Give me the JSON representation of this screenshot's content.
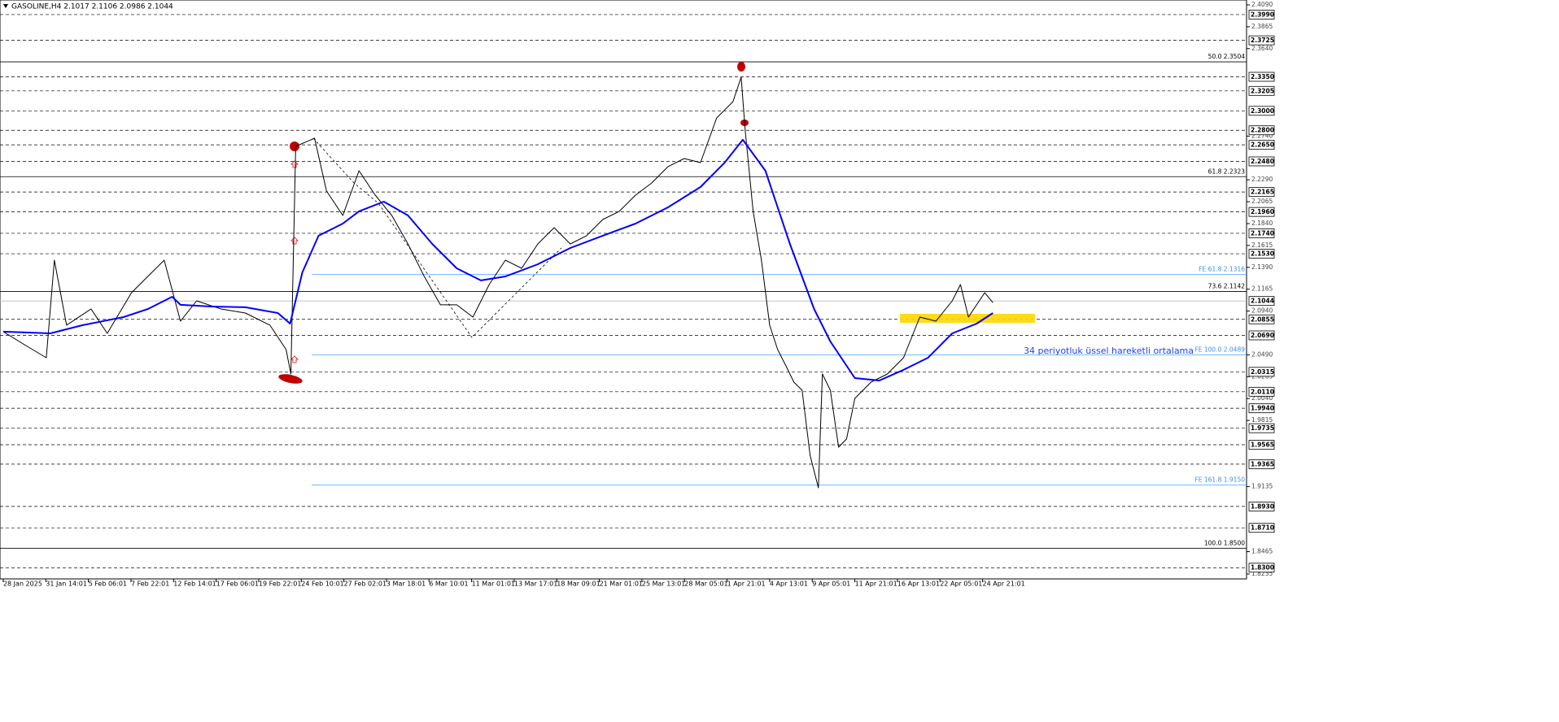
{
  "chart_data": {
    "type": "line",
    "title": "GASOLINE,H4  2.1017 2.1106 2.0986 2.1044",
    "annotation": "34 periyotluk üssel hareketli ortalama",
    "xlim": [
      -0.6,
      467.2
    ],
    "ylim": [
      1.8235,
      2.409
    ],
    "xticks": [
      {
        "value": 0,
        "label": "28 Jan 2025"
      },
      {
        "value": 16,
        "label": "31 Jan 14:01"
      },
      {
        "value": 32,
        "label": "5 Feb 06:01"
      },
      {
        "value": 48,
        "label": "7 Feb 22:01"
      },
      {
        "value": 64,
        "label": "12 Feb 14:01"
      },
      {
        "value": 80,
        "label": "17 Feb 06:01"
      },
      {
        "value": 96,
        "label": "19 Feb 22:01"
      },
      {
        "value": 112,
        "label": "24 Feb 10:01"
      },
      {
        "value": 128,
        "label": "27 Feb 02:01"
      },
      {
        "value": 144,
        "label": "3 Mar 18:01"
      },
      {
        "value": 160,
        "label": "6 Mar 10:01"
      },
      {
        "value": 176,
        "label": "11 Mar 01:01"
      },
      {
        "value": 192,
        "label": "13 Mar 17:01"
      },
      {
        "value": 208,
        "label": "18 Mar 09:01"
      },
      {
        "value": 224,
        "label": "21 Mar 01:01"
      },
      {
        "value": 240,
        "label": "25 Mar 13:01"
      },
      {
        "value": 256,
        "label": "28 Mar 05:01"
      },
      {
        "value": 272,
        "label": "1 Apr 21:01"
      },
      {
        "value": 288,
        "label": "4 Apr 13:01"
      },
      {
        "value": 304,
        "label": "9 Apr 05:01"
      },
      {
        "value": 320,
        "label": "11 Apr 21:01"
      },
      {
        "value": 336,
        "label": "16 Apr 13:01"
      },
      {
        "value": 352,
        "label": "22 Apr 05:01"
      },
      {
        "value": 368,
        "label": "24 Apr 21:01"
      }
    ],
    "yticks": [
      {
        "value": 2.409,
        "label": "2.4090"
      },
      {
        "value": 2.3865,
        "label": "2.3865"
      },
      {
        "value": 2.364,
        "label": "2.3640"
      },
      {
        "value": 2.274,
        "label": "2.2740"
      },
      {
        "value": 2.229,
        "label": "2.2290"
      },
      {
        "value": 2.2065,
        "label": "2.2065"
      },
      {
        "value": 2.184,
        "label": "2.1840"
      },
      {
        "value": 2.1615,
        "label": "2.1615"
      },
      {
        "value": 2.139,
        "label": "2.1390"
      },
      {
        "value": 2.1165,
        "label": "2.1165"
      },
      {
        "value": 2.094,
        "label": "2.0940"
      },
      {
        "value": 2.049,
        "label": "2.0490"
      },
      {
        "value": 2.0265,
        "label": "2.0265"
      },
      {
        "value": 2.004,
        "label": "2.0040"
      },
      {
        "value": 1.9815,
        "label": "1.9815"
      },
      {
        "value": 1.9135,
        "label": "1.9135"
      },
      {
        "value": 1.8465,
        "label": "1.8465"
      },
      {
        "value": 1.8235,
        "label": "1.8235"
      }
    ],
    "levels": [
      {
        "value": 2.399,
        "label": "2.3990"
      },
      {
        "value": 2.3725,
        "label": "2.3725"
      },
      {
        "value": 2.335,
        "label": "2.3350"
      },
      {
        "value": 2.3205,
        "label": "2.3205"
      },
      {
        "value": 2.3,
        "label": "2.3000"
      },
      {
        "value": 2.28,
        "label": "2.2800"
      },
      {
        "value": 2.265,
        "label": "2.2650"
      },
      {
        "value": 2.248,
        "label": "2.2480"
      },
      {
        "value": 2.2165,
        "label": "2.2165"
      },
      {
        "value": 2.196,
        "label": "2.1960"
      },
      {
        "value": 2.174,
        "label": "2.1740"
      },
      {
        "value": 2.153,
        "label": "2.1530"
      },
      {
        "value": 2.0855,
        "label": "2.0855"
      },
      {
        "value": 2.069,
        "label": "2.0690"
      },
      {
        "value": 2.0315,
        "label": "2.0315"
      },
      {
        "value": 2.011,
        "label": "2.0110"
      },
      {
        "value": 1.994,
        "label": "1.9940"
      },
      {
        "value": 1.9735,
        "label": "1.9735"
      },
      {
        "value": 1.9565,
        "label": "1.9565"
      },
      {
        "value": 1.9365,
        "label": "1.9365"
      },
      {
        "value": 1.893,
        "label": "1.8930"
      },
      {
        "value": 1.871,
        "label": "1.8710"
      },
      {
        "value": 1.83,
        "label": "1.8300"
      }
    ],
    "current_price": {
      "value": 2.1044,
      "label": "2.1044"
    },
    "fib_levels": [
      {
        "value": 2.3504,
        "label": "50.0 2.3504"
      },
      {
        "value": 2.2323,
        "label": "61.8 2.2323"
      },
      {
        "value": 2.1142,
        "label": "73.6 2.1142"
      },
      {
        "value": 1.85,
        "label": "100.0 1.8500"
      }
    ],
    "fe_levels": [
      {
        "value": 2.1316,
        "label": "FE 61.8 2.1316"
      },
      {
        "value": 2.0489,
        "label": "FE 100.0 2.0489"
      },
      {
        "value": 1.915,
        "label": "FE 161.8 1.9150"
      }
    ],
    "series": [
      {
        "color": "#000000",
        "x": [
          0,
          8.5,
          16.2,
          19.2,
          23.8,
          33,
          39.1,
          48.2,
          60.5,
          66.6,
          72.7,
          81.8,
          91,
          100.2,
          106.3,
          108.1,
          109.9,
          117,
          121.5,
          127.6,
          133.7,
          139.8,
          146,
          152.1,
          158.2,
          164.3,
          170.4,
          176.5,
          182.6,
          188.7,
          194.8,
          200.9,
          207,
          213.1,
          219.2,
          225.3,
          231.5,
          237.6,
          243.7,
          249.8,
          255.9,
          262,
          268.1,
          274.2,
          277.3,
          278.8,
          281.8,
          284.9,
          288,
          291,
          294.1,
          297.1,
          300.2,
          303.2,
          306.3,
          307.8,
          310.8,
          313.9,
          316.9,
          320,
          326.1,
          332.2,
          338.3,
          344.4,
          350.5,
          356.6,
          359.7,
          362.7,
          368.8,
          371.9
        ],
        "values": [
          2.0728,
          2.0585,
          2.046,
          2.1464,
          2.0795,
          2.0962,
          2.0711,
          2.1129,
          2.1464,
          2.0836,
          2.1045,
          2.0962,
          2.092,
          2.0795,
          2.0544,
          2.0293,
          2.2635,
          2.2718,
          2.2175,
          2.1924,
          2.2384,
          2.2133,
          2.1924,
          2.1631,
          2.1296,
          2.1004,
          2.1004,
          2.0878,
          2.1213,
          2.1464,
          2.138,
          2.1631,
          2.1798,
          2.1631,
          2.1715,
          2.1882,
          2.1966,
          2.2133,
          2.2258,
          2.2426,
          2.2509,
          2.2467,
          2.2927,
          2.3095,
          2.3346,
          2.2802,
          2.1966,
          2.1464,
          2.0795,
          2.0544,
          2.0376,
          2.0209,
          2.0125,
          1.9456,
          1.9122,
          2.0293,
          2.0125,
          1.954,
          1.9624,
          2.0042,
          2.0209,
          2.0293,
          2.046,
          2.0878,
          2.0836,
          2.1045,
          2.1213,
          2.0878,
          2.1129,
          2.1027
        ]
      },
      {
        "color": "#0000ff",
        "x": [
          0,
          17.7,
          29.9,
          45.2,
          54.4,
          63.5,
          66.6,
          78.2,
          91,
          103.2,
          107.8,
          112.4,
          118.5,
          127.6,
          133.7,
          143,
          152.1,
          161.2,
          170.4,
          179.5,
          188.7,
          200.9,
          213.1,
          225.3,
          237.6,
          249.8,
          262,
          271.1,
          277.9,
          286.4,
          295.6,
          304.7,
          310.8,
          320,
          329.2,
          338.3,
          347.5,
          356.6,
          365.8,
          371.9
        ],
        "values": [
          2.0728,
          2.0711,
          2.0795,
          2.0878,
          2.0962,
          2.1087,
          2.1004,
          2.0987,
          2.0979,
          2.092,
          2.0811,
          2.1338,
          2.1715,
          2.184,
          2.1966,
          2.2066,
          2.1924,
          2.1631,
          2.138,
          2.1255,
          2.1296,
          2.1422,
          2.1589,
          2.1715,
          2.184,
          2.2007,
          2.2216,
          2.2467,
          2.2702,
          2.2384,
          2.1631,
          2.0962,
          2.0627,
          2.0251,
          2.0226,
          2.0335,
          2.046,
          2.0711,
          2.0811,
          2.092
        ]
      }
    ]
  }
}
